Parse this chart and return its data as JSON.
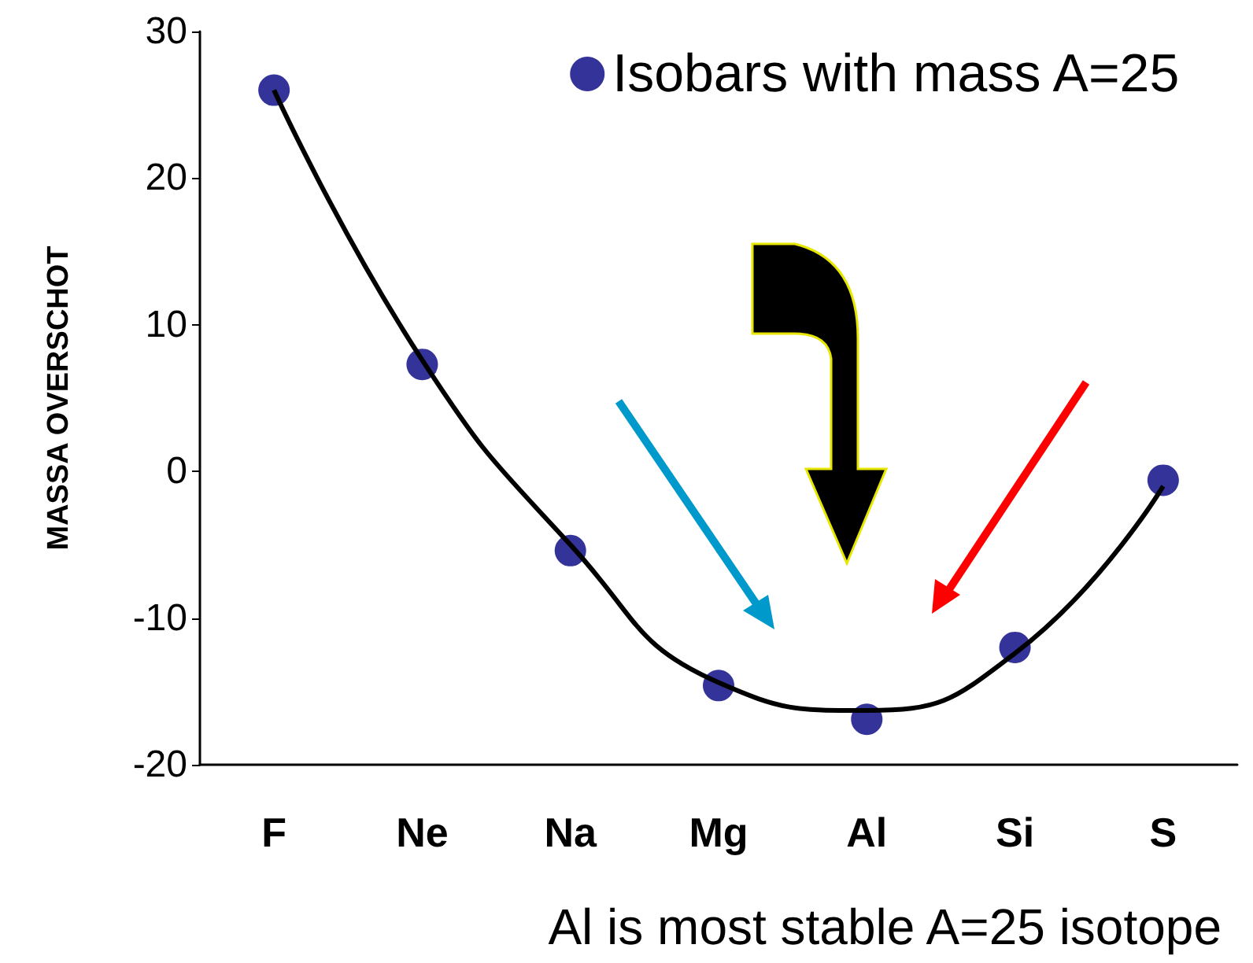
{
  "chart_data": {
    "type": "scatter",
    "ylabel": "MASSA OVERSCHOT",
    "categories": [
      "F",
      "Ne",
      "Na",
      "Mg",
      "Al",
      "Si",
      "S"
    ],
    "series": [
      {
        "name": "Isobars with mass A=25",
        "color": "#000080",
        "marker": "circle",
        "values": [
          26,
          7.3,
          -5.4,
          -14.6,
          -16.9,
          -12,
          -0.6
        ]
      },
      {
        "type": "line",
        "color": "#000000",
        "line_style": "solid",
        "values": [
          26,
          7.6,
          -5,
          -14.4,
          -16.3,
          -12.4,
          -1
        ]
      }
    ],
    "ylim": [
      -20,
      30
    ],
    "yticks": [
      -20,
      -10,
      0,
      10,
      20,
      30
    ],
    "grid": false,
    "legend": "top right",
    "annotations": [
      "Al is most stable A=25 isotope"
    ]
  }
}
